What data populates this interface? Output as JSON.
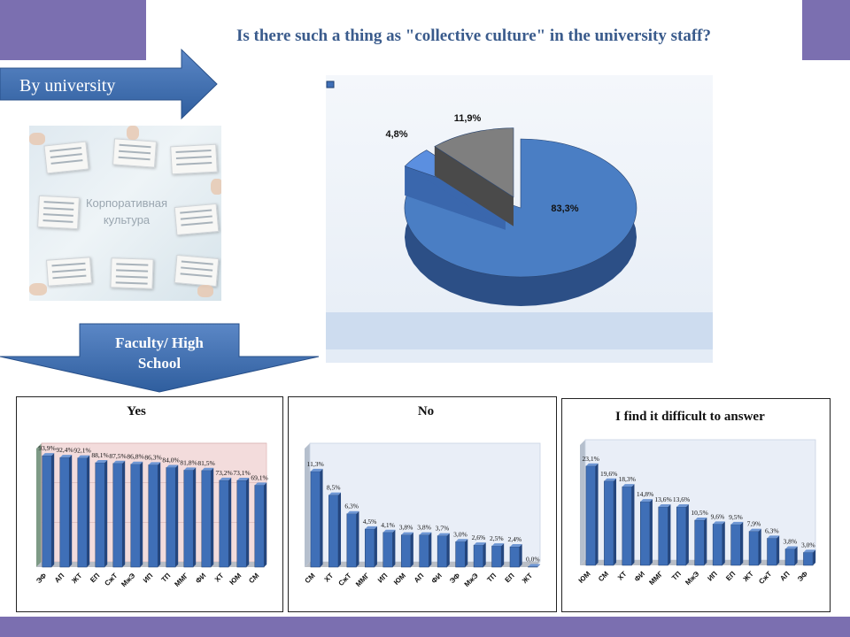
{
  "title": "Is there such a thing as \"collective culture\" in the university staff?",
  "arrows": {
    "by_university": "By university",
    "faculty": "Faculty/ High School"
  },
  "photo_caption": "Корпоративная культура",
  "colors": {
    "accent_band": "#7b6fb0",
    "bar_blue": "#3f6fb7",
    "pie_yes": "#4a7ec4",
    "pie_no": "#5b8fe0",
    "pie_difficult": "#7f7f7f"
  },
  "chart_data": [
    {
      "type": "pie",
      "title": "",
      "values": [
        83.3,
        4.8,
        11.9
      ],
      "labels": [
        "83,3%",
        "4,8%",
        "11,9%"
      ],
      "colors": [
        "#4a7ec4",
        "#5b8fe0",
        "#7f7f7f"
      ]
    },
    {
      "type": "bar",
      "title": "Yes",
      "categories": [
        "ЭФ",
        "АП",
        "ЖТ",
        "ЕП",
        "СжТ",
        "МжЭ",
        "ИП",
        "ТП",
        "ММГ",
        "ФИ",
        "ХТ",
        "ЮМ",
        "СМ"
      ],
      "values": [
        93.9,
        92.4,
        92.1,
        88.1,
        87.5,
        86.8,
        86.3,
        84.0,
        81.8,
        81.5,
        73.2,
        73.1,
        69.1
      ],
      "labels": [
        "93,9%",
        "92,4%",
        "92,1%",
        "88,1%",
        "87,5%",
        "86,8%",
        "86,3%",
        "84,0%",
        "81,8%",
        "81,5%",
        "73,2%",
        "73,1%",
        "69,1%"
      ],
      "ylim": [
        0,
        100
      ]
    },
    {
      "type": "bar",
      "title": "No",
      "categories": [
        "СМ",
        "ХТ",
        "СжТ",
        "ММГ",
        "ИП",
        "ЮМ",
        "АП",
        "ФИ",
        "ЭФ",
        "МжЭ",
        "ТП",
        "ЕП",
        "ЖТ"
      ],
      "values": [
        11.3,
        8.5,
        6.3,
        4.5,
        4.1,
        3.8,
        3.8,
        3.7,
        3.0,
        2.6,
        2.5,
        2.4,
        0.0
      ],
      "labels": [
        "11,3%",
        "8,5%",
        "6,3%",
        "4,5%",
        "4,1%",
        "3,8%",
        "3,8%",
        "3,7%",
        "3,0%",
        "2,6%",
        "2,5%",
        "2,4%",
        "0,0%"
      ],
      "ylim": [
        0,
        14
      ]
    },
    {
      "type": "bar",
      "title": "I find it difficult to answer",
      "categories": [
        "ЮМ",
        "СМ",
        "ХТ",
        "ФИ",
        "ММГ",
        "ТП",
        "МжЭ",
        "ИП",
        "ЕП",
        "ЖТ",
        "СжТ",
        "АП",
        "ЭФ"
      ],
      "values": [
        23.1,
        19.6,
        18.3,
        14.8,
        13.6,
        13.6,
        10.5,
        9.6,
        9.5,
        7.9,
        6.3,
        3.8,
        3.0
      ],
      "labels": [
        "23,1%",
        "19,6%",
        "18,3%",
        "14,8%",
        "13,6%",
        "13,6%",
        "10,5%",
        "9,6%",
        "9,5%",
        "7,9%",
        "6,3%",
        "3,8%",
        "3,0%"
      ],
      "ylim": [
        0,
        28
      ]
    }
  ]
}
